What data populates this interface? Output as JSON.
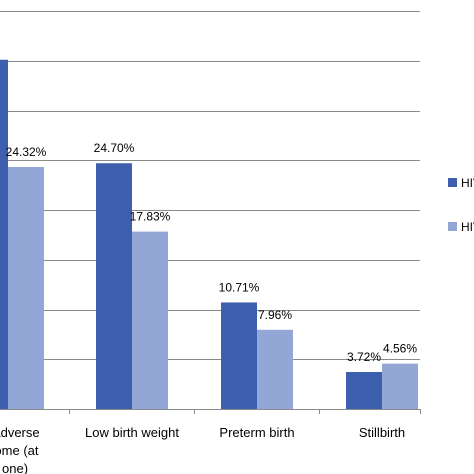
{
  "chart_data": {
    "type": "bar",
    "title": "",
    "xlabel": "",
    "ylabel": "",
    "ylim": [
      0,
      40
    ],
    "grid": true,
    "legend_position": "right",
    "categories": [
      [
        "...it adverse",
        "...tcome (at",
        "...t one)"
      ],
      [
        "Low birth weight"
      ],
      [
        "Preterm birth"
      ],
      [
        "Stillbirth"
      ]
    ],
    "series": [
      {
        "name": "HIV",
        "color": "#3E5FAE",
        "values": [
          35.1,
          24.7,
          10.71,
          3.72
        ],
        "labels": [
          "%",
          "24.70%",
          "10.71%",
          "3.72%"
        ]
      },
      {
        "name": "HIV",
        "color": "#93A7D6",
        "values": [
          24.32,
          17.83,
          7.96,
          4.56
        ],
        "labels": [
          "24.32%",
          "17.83%",
          "7.96%",
          "4.56%"
        ]
      }
    ]
  }
}
